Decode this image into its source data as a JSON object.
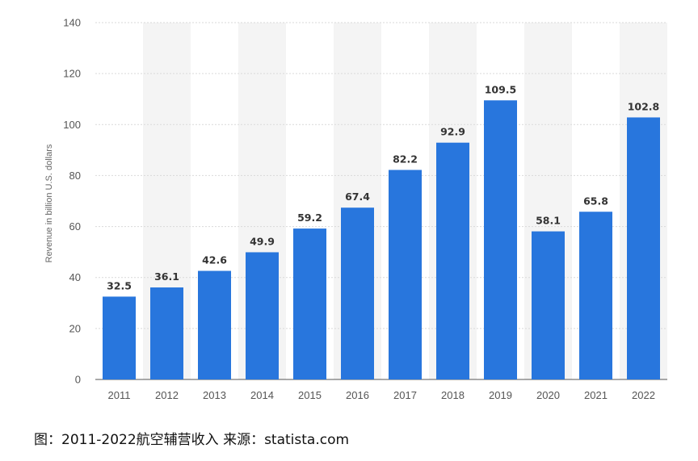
{
  "chart_data": {
    "type": "bar",
    "categories": [
      "2011",
      "2012",
      "2013",
      "2014",
      "2015",
      "2016",
      "2017",
      "2018",
      "2019",
      "2020",
      "2021",
      "2022"
    ],
    "values": [
      32.5,
      36.1,
      42.6,
      49.9,
      59.2,
      67.4,
      82.2,
      92.9,
      109.5,
      58.1,
      65.8,
      102.8
    ],
    "data_labels": [
      "32.5",
      "36.1",
      "42.6",
      "49.9",
      "59.2",
      "67.4",
      "82.2",
      "92.9",
      "109.5",
      "58.1",
      "65.8",
      "102.8"
    ],
    "ylabel": "Revenue in billion U.S. dollars",
    "xlabel": "",
    "ylim": [
      0,
      140
    ],
    "yticks": [
      "0",
      "20",
      "40",
      "60",
      "80",
      "100",
      "120",
      "140"
    ],
    "grid": true,
    "colors": {
      "bar": "#2876dd",
      "stripe": "#f4f4f4",
      "grid": "#d9d9d9"
    }
  },
  "caption": "图：2011-2022航空辅营收入 来源：statista.com"
}
